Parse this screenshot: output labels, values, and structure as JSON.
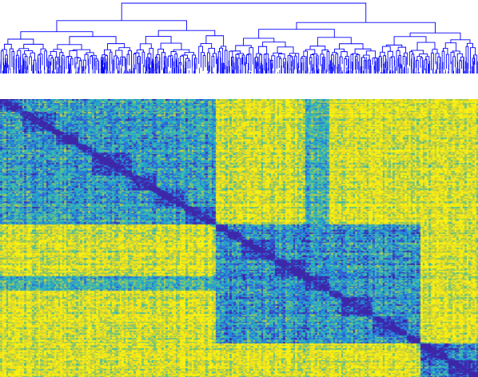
{
  "chart_data": {
    "type": "heatmap",
    "subtype": "clustered-correlation-matrix-with-dendrogram",
    "colormap": [
      "#3e26a8",
      "#2f6ae0",
      "#1ea6d0",
      "#46c0a0",
      "#b0c84a",
      "#f8e11a",
      "#f9f50d"
    ],
    "diagonal_value": 0,
    "value_range": [
      0,
      1
    ],
    "clusters": [
      {
        "start": 0.0,
        "end": 0.45,
        "mean_within": 0.35
      },
      {
        "start": 0.45,
        "end": 0.88,
        "mean_within": 0.3
      },
      {
        "start": 0.88,
        "end": 1.0,
        "mean_within": 0.25
      }
    ],
    "dendrogram_color": "#0000ff",
    "grid": false,
    "legend": "none"
  }
}
